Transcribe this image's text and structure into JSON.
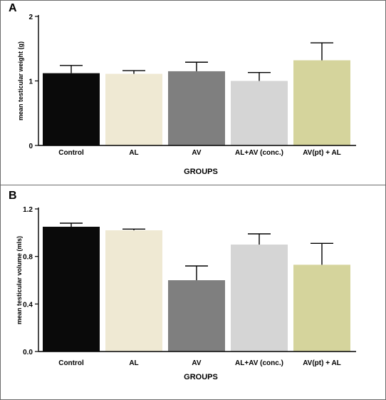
{
  "chart_data": [
    {
      "panel": "A",
      "type": "bar",
      "categories": [
        "Control",
        "AL",
        "AV",
        "AL+AV (conc.)",
        "AV(pt) + AL"
      ],
      "values": [
        1.12,
        1.11,
        1.15,
        1.0,
        1.32
      ],
      "errors": [
        0.12,
        0.05,
        0.14,
        0.13,
        0.27
      ],
      "colors": [
        "#0a0a0a",
        "#efe9d3",
        "#7f7f7f",
        "#d5d5d5",
        "#d5d49c"
      ],
      "yticks": [
        "0",
        "1",
        "2"
      ],
      "ytick_values": [
        0,
        1,
        2
      ],
      "ylim": [
        0,
        2
      ],
      "xlabel": "GROUPS",
      "ylabel": "mean testicular weight (g)",
      "grid": false,
      "legend": "none"
    },
    {
      "panel": "B",
      "type": "bar",
      "categories": [
        "Control",
        "AL",
        "AV",
        "AL+AV (conc.)",
        "AV(pt) + AL"
      ],
      "values": [
        1.05,
        1.02,
        0.6,
        0.9,
        0.73
      ],
      "errors": [
        0.03,
        0.01,
        0.12,
        0.09,
        0.18
      ],
      "colors": [
        "#0a0a0a",
        "#efe9d3",
        "#7f7f7f",
        "#d5d5d5",
        "#d5d49c"
      ],
      "yticks": [
        "0.0",
        "0.4",
        "0.8",
        "1.2"
      ],
      "ytick_values": [
        0,
        0.4,
        0.8,
        1.2
      ],
      "ylim": [
        0,
        1.2
      ],
      "xlabel": "GROUPS",
      "ylabel": "mean testicular volume (mls)",
      "grid": false,
      "legend": "none"
    }
  ]
}
